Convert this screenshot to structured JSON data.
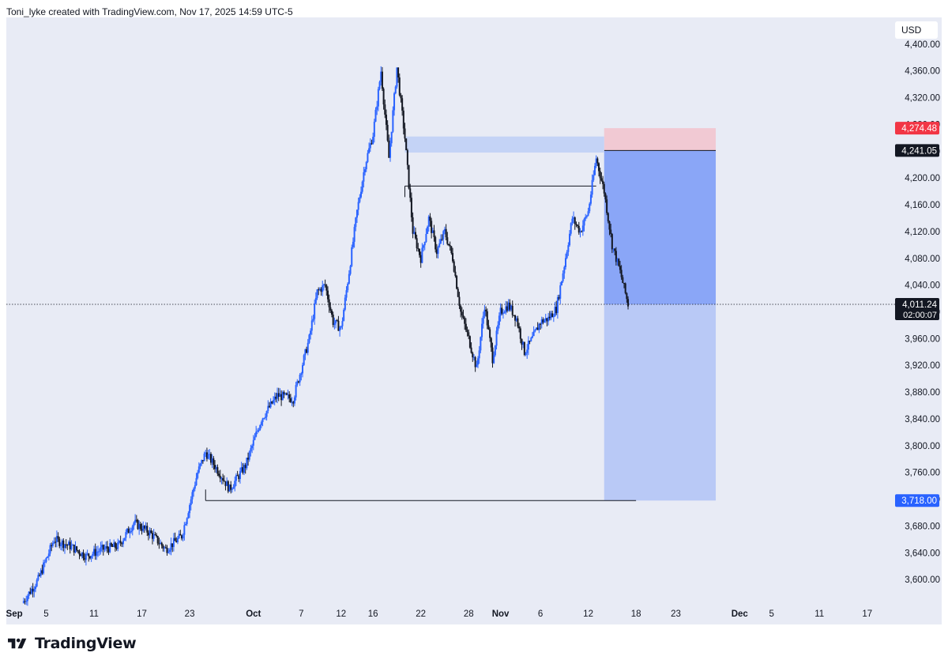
{
  "header": {
    "credit": "Toni_lyke created with TradingView.com, Nov 17, 2025 14:59 UTC-5"
  },
  "price_scale": {
    "currency": "USD"
  },
  "footer": {
    "logo_text": "TradingView"
  },
  "colors": {
    "background": "#e8ebf5",
    "candle_up": "#2962ff",
    "candle_down": "#131722",
    "target_zone": "#a9bdf5",
    "target_zone_dark": "#8aa6f7",
    "stop_zone": "#f1c9d3",
    "stop_label": "#f23645",
    "target_label": "#2962ff",
    "entry_label": "#131722",
    "supply_band": "#c4d3f6"
  },
  "chart_data": {
    "type": "candlestick",
    "symbol_currency": "USD",
    "title": "",
    "ylim": [
      3560,
      4440
    ],
    "y_ticks": [
      3600,
      3640,
      3680,
      3720,
      3760,
      3800,
      3840,
      3880,
      3920,
      3960,
      4000,
      4040,
      4080,
      4120,
      4160,
      4200,
      4240,
      4280,
      4320,
      4360,
      4400
    ],
    "y_tick_labels": [
      "3,600.00",
      "3,640.00",
      "3,680.00",
      "3,720.00",
      "3,760.00",
      "3,800.00",
      "3,840.00",
      "3,880.00",
      "3,920.00",
      "3,960.00",
      "4,000.00",
      "4,040.00",
      "4,080.00",
      "4,120.00",
      "4,160.00",
      "4,200.00",
      "4,240.00",
      "4,280.00",
      "4,320.00",
      "4,360.00",
      "4,400.00"
    ],
    "x_range": [
      "2025-08-31",
      "2025-12-20"
    ],
    "x_ticks": [
      {
        "date": "2025-09-01",
        "label": "Sep",
        "bold": true
      },
      {
        "date": "2025-09-05",
        "label": "5",
        "bold": false
      },
      {
        "date": "2025-09-11",
        "label": "11",
        "bold": false
      },
      {
        "date": "2025-09-17",
        "label": "17",
        "bold": false
      },
      {
        "date": "2025-09-23",
        "label": "23",
        "bold": false
      },
      {
        "date": "2025-10-01",
        "label": "Oct",
        "bold": true
      },
      {
        "date": "2025-10-07",
        "label": "7",
        "bold": false
      },
      {
        "date": "2025-10-12",
        "label": "12",
        "bold": false
      },
      {
        "date": "2025-10-16",
        "label": "16",
        "bold": false
      },
      {
        "date": "2025-10-22",
        "label": "22",
        "bold": false
      },
      {
        "date": "2025-10-28",
        "label": "28",
        "bold": false
      },
      {
        "date": "2025-11-01",
        "label": "Nov",
        "bold": true
      },
      {
        "date": "2025-11-06",
        "label": "6",
        "bold": false
      },
      {
        "date": "2025-11-12",
        "label": "12",
        "bold": false
      },
      {
        "date": "2025-11-18",
        "label": "18",
        "bold": false
      },
      {
        "date": "2025-11-23",
        "label": "23",
        "bold": false
      },
      {
        "date": "2025-12-01",
        "label": "Dec",
        "bold": true
      },
      {
        "date": "2025-12-05",
        "label": "5",
        "bold": false
      },
      {
        "date": "2025-12-11",
        "label": "11",
        "bold": false
      },
      {
        "date": "2025-12-17",
        "label": "17",
        "bold": false
      }
    ],
    "price_path": [
      {
        "date": "2025-09-02",
        "price": 3565
      },
      {
        "date": "2025-09-04",
        "price": 3600
      },
      {
        "date": "2025-09-06",
        "price": 3660
      },
      {
        "date": "2025-09-08",
        "price": 3650
      },
      {
        "date": "2025-09-10",
        "price": 3635
      },
      {
        "date": "2025-09-12",
        "price": 3645
      },
      {
        "date": "2025-09-14",
        "price": 3650
      },
      {
        "date": "2025-09-16",
        "price": 3685
      },
      {
        "date": "2025-09-18",
        "price": 3670
      },
      {
        "date": "2025-09-20",
        "price": 3645
      },
      {
        "date": "2025-09-22",
        "price": 3665
      },
      {
        "date": "2025-09-24",
        "price": 3760
      },
      {
        "date": "2025-09-25",
        "price": 3790
      },
      {
        "date": "2025-09-27",
        "price": 3755
      },
      {
        "date": "2025-09-28",
        "price": 3735
      },
      {
        "date": "2025-09-30",
        "price": 3770
      },
      {
        "date": "2025-10-02",
        "price": 3840
      },
      {
        "date": "2025-10-04",
        "price": 3875
      },
      {
        "date": "2025-10-06",
        "price": 3870
      },
      {
        "date": "2025-10-08",
        "price": 3960
      },
      {
        "date": "2025-10-09",
        "price": 4030
      },
      {
        "date": "2025-10-10",
        "price": 4040
      },
      {
        "date": "2025-10-11",
        "price": 3985
      },
      {
        "date": "2025-10-12",
        "price": 3975
      },
      {
        "date": "2025-10-13",
        "price": 4060
      },
      {
        "date": "2025-10-14",
        "price": 4150
      },
      {
        "date": "2025-10-15",
        "price": 4220
      },
      {
        "date": "2025-10-16",
        "price": 4265
      },
      {
        "date": "2025-10-17",
        "price": 4360
      },
      {
        "date": "2025-10-18",
        "price": 4230
      },
      {
        "date": "2025-10-19",
        "price": 4365
      },
      {
        "date": "2025-10-20",
        "price": 4260
      },
      {
        "date": "2025-10-21",
        "price": 4120
      },
      {
        "date": "2025-10-22",
        "price": 4080
      },
      {
        "date": "2025-10-23",
        "price": 4140
      },
      {
        "date": "2025-10-24",
        "price": 4090
      },
      {
        "date": "2025-10-25",
        "price": 4120
      },
      {
        "date": "2025-10-26",
        "price": 4080
      },
      {
        "date": "2025-10-27",
        "price": 4000
      },
      {
        "date": "2025-10-28",
        "price": 3960
      },
      {
        "date": "2025-10-29",
        "price": 3915
      },
      {
        "date": "2025-10-30",
        "price": 4010
      },
      {
        "date": "2025-10-31",
        "price": 3930
      },
      {
        "date": "2025-11-01",
        "price": 4000
      },
      {
        "date": "2025-11-02",
        "price": 4010
      },
      {
        "date": "2025-11-03",
        "price": 3990
      },
      {
        "date": "2025-11-04",
        "price": 3940
      },
      {
        "date": "2025-11-05",
        "price": 3960
      },
      {
        "date": "2025-11-06",
        "price": 3985
      },
      {
        "date": "2025-11-07",
        "price": 3990
      },
      {
        "date": "2025-11-08",
        "price": 4005
      },
      {
        "date": "2025-11-09",
        "price": 4070
      },
      {
        "date": "2025-11-10",
        "price": 4140
      },
      {
        "date": "2025-11-11",
        "price": 4120
      },
      {
        "date": "2025-11-12",
        "price": 4150
      },
      {
        "date": "2025-11-13",
        "price": 4230
      },
      {
        "date": "2025-11-14",
        "price": 4180
      },
      {
        "date": "2025-11-15",
        "price": 4100
      },
      {
        "date": "2025-11-16",
        "price": 4060
      },
      {
        "date": "2025-11-17",
        "price": 4011.24
      }
    ],
    "zones": {
      "supply_band": {
        "start": "2025-10-20",
        "end": "2025-11-14",
        "top": 4262,
        "bottom": 4238
      },
      "position_start": "2025-11-14",
      "position_end": "2025-11-28",
      "stop": 4274.48,
      "entry": 4241.05,
      "target": 3718.0,
      "current": 4011.24
    },
    "lines": {
      "equal_high": {
        "start": "2025-10-20",
        "end": "2025-11-13",
        "price": 4188
      },
      "support": {
        "start": "2025-09-25",
        "end": "2025-11-18",
        "price": 3718
      }
    },
    "price_labels": {
      "stop": "4,274.48",
      "entry": "4,241.05",
      "current": "4,011.24",
      "countdown": "02:00:07",
      "target": "3,718.00"
    }
  }
}
